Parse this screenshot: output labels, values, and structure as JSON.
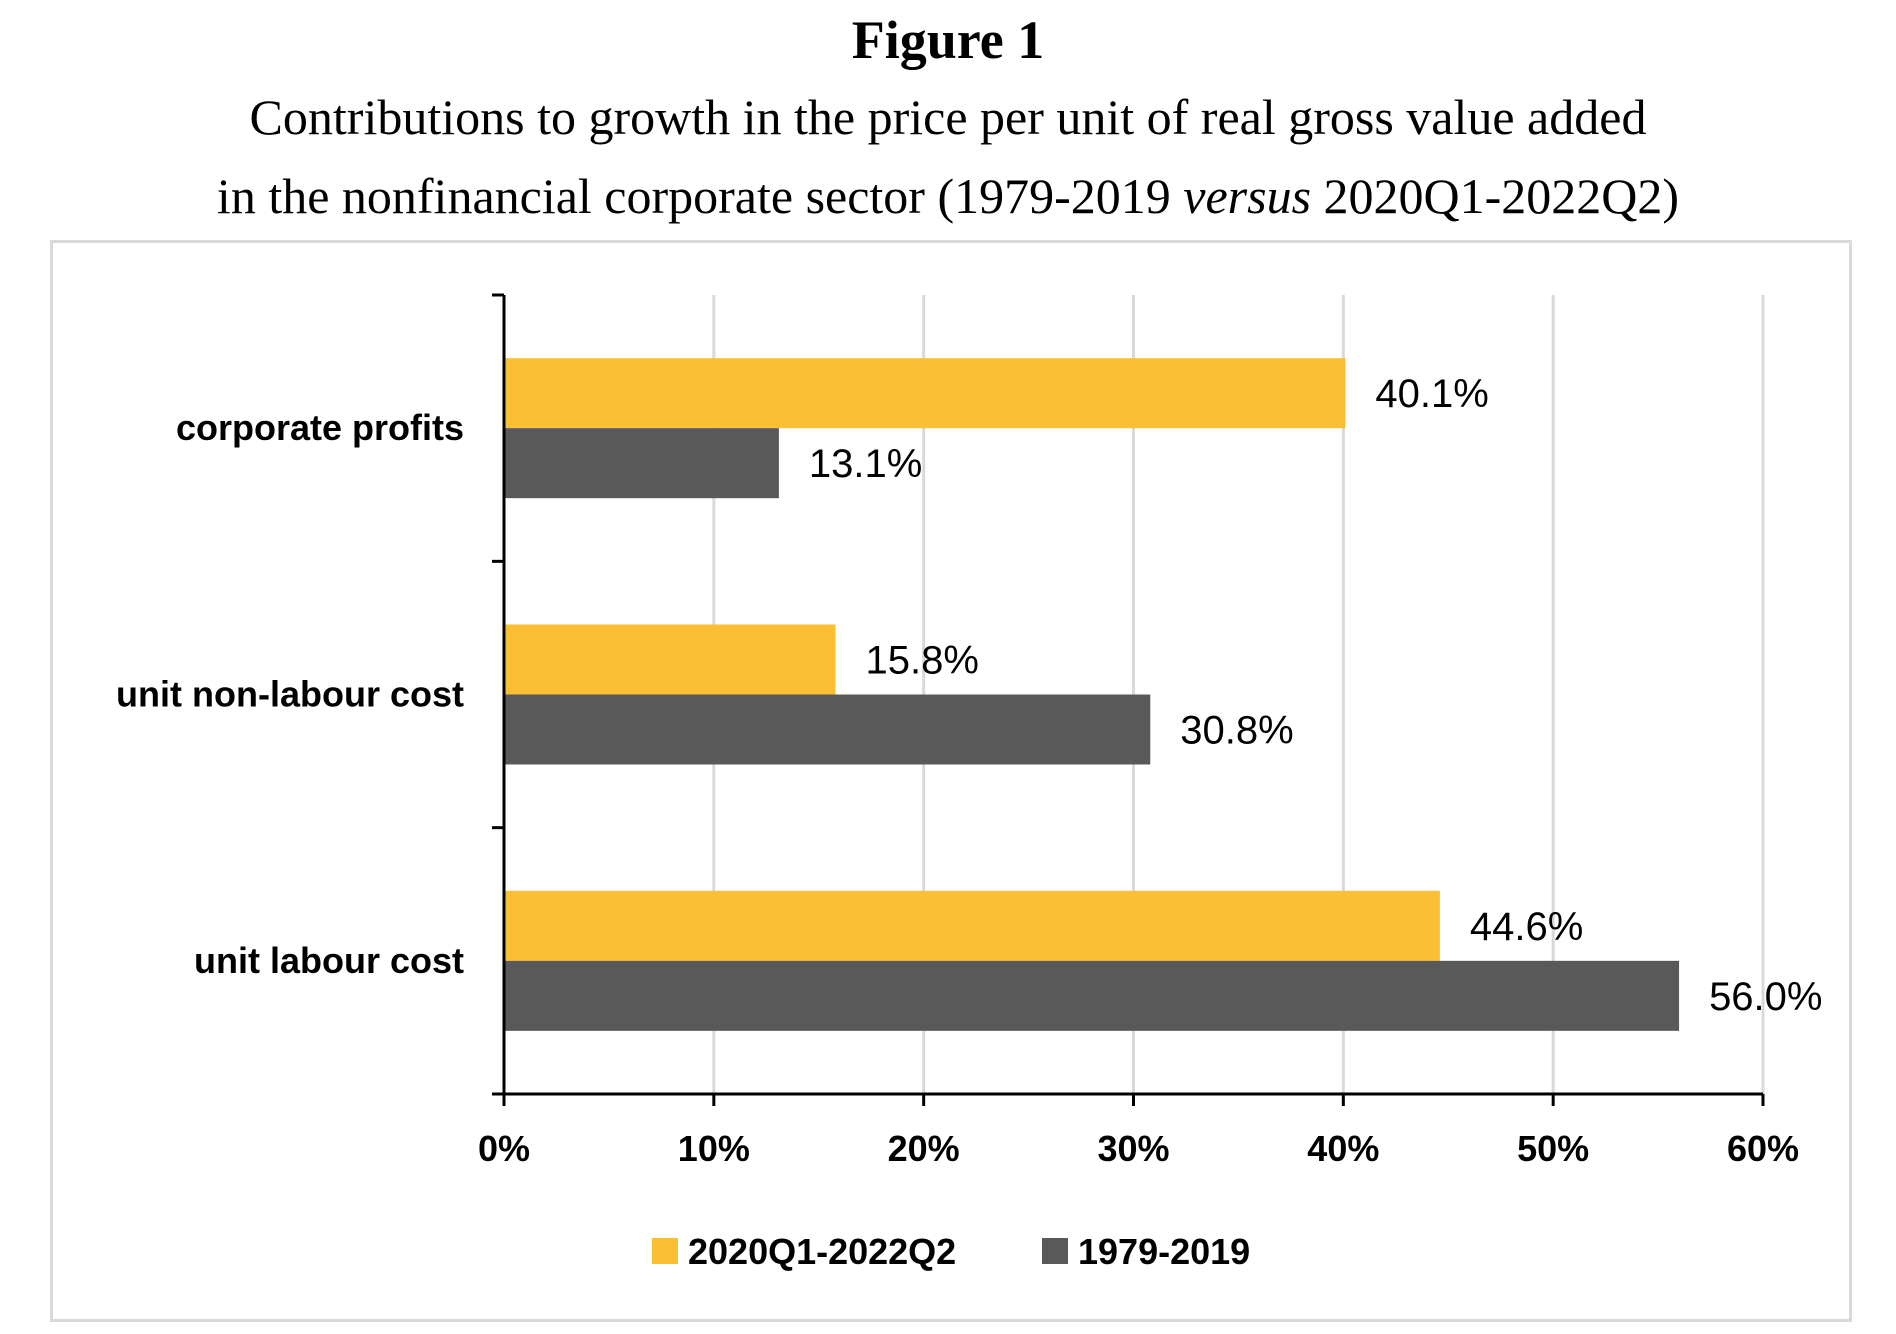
{
  "figure_label": "Figure 1",
  "title_line1": "Contributions to growth in the price per unit of real gross value added",
  "title_line2_pre": "in the nonfinancial corporate sector (1979-2019 ",
  "title_line2_em": "versus",
  "title_line2_post": " 2020Q1-2022Q2)",
  "chart_data": {
    "type": "bar",
    "orientation": "horizontal",
    "categories": [
      "corporate profits",
      "unit non-labour cost",
      "unit labour cost"
    ],
    "series": [
      {
        "name": "2020Q1-2022Q2",
        "color": "#fbbf35",
        "values": [
          40.1,
          15.8,
          44.6
        ],
        "labels": [
          "40.1%",
          "15.8%",
          "44.6%"
        ]
      },
      {
        "name": "1979-2019",
        "color": "#595959",
        "values": [
          13.1,
          30.8,
          56.0
        ],
        "labels": [
          "13.1%",
          "30.8%",
          "56.0%"
        ]
      }
    ],
    "xlim": [
      0,
      60
    ],
    "x_ticks": [
      0,
      10,
      20,
      30,
      40,
      50,
      60
    ],
    "x_tick_labels": [
      "0%",
      "10%",
      "20%",
      "30%",
      "40%",
      "50%",
      "60%"
    ],
    "grid": true,
    "gridline_color": "#d9d9d9",
    "legend_position": "bottom"
  }
}
